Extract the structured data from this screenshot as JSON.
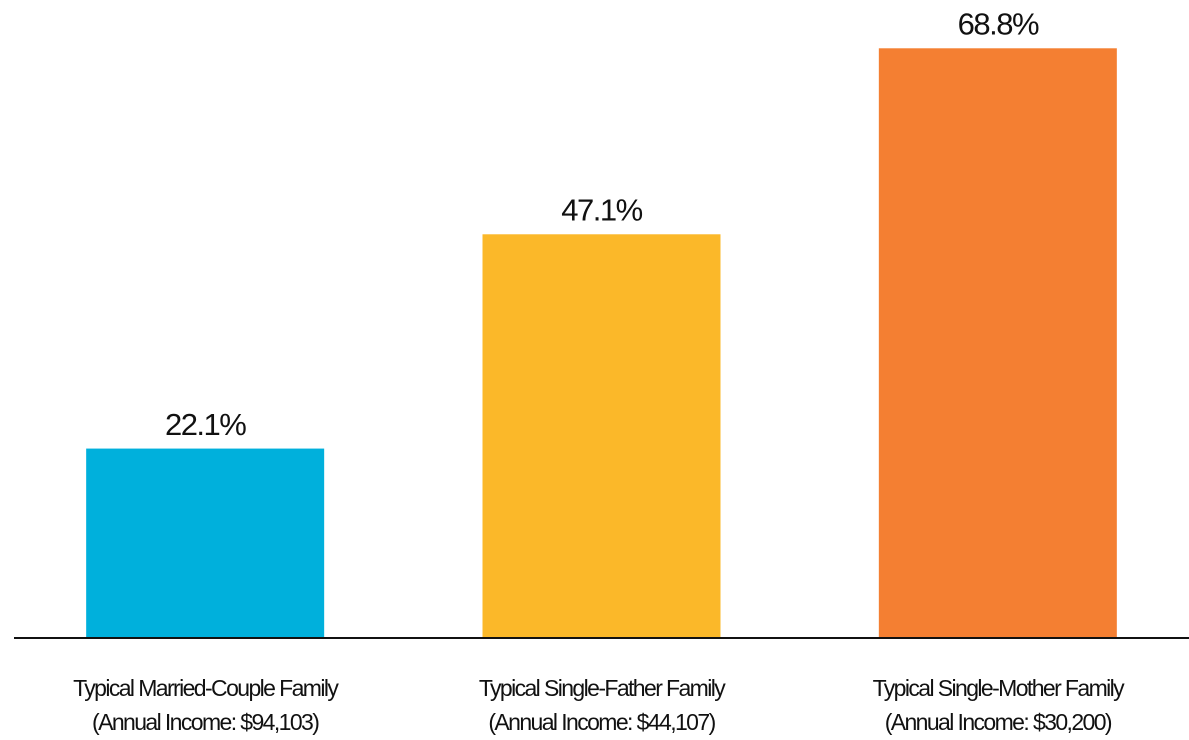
{
  "chart_data": {
    "type": "bar",
    "categories": [
      [
        "Typical Married-Couple Family",
        "(Annual Income: $94,103)"
      ],
      [
        "Typical Single-Father Family",
        "(Annual Income: $44,107)"
      ],
      [
        "Typical Single-Mother Family",
        "(Annual Income: $30,200)"
      ]
    ],
    "values": [
      22.1,
      47.1,
      68.8
    ],
    "value_labels": [
      "22.1%",
      "47.1%",
      "68.8%"
    ],
    "colors": [
      "#00b0dc",
      "#fbb829",
      "#f47f32"
    ],
    "ylim": [
      0,
      70
    ]
  }
}
